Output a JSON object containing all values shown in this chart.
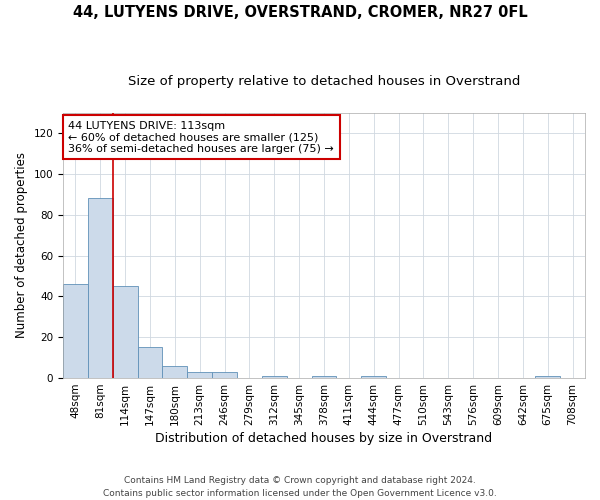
{
  "title1": "44, LUTYENS DRIVE, OVERSTRAND, CROMER, NR27 0FL",
  "title2": "Size of property relative to detached houses in Overstrand",
  "xlabel": "Distribution of detached houses by size in Overstrand",
  "ylabel": "Number of detached properties",
  "bar_values": [
    46,
    88,
    45,
    15,
    6,
    3,
    3,
    0,
    1,
    0,
    1,
    0,
    1,
    0,
    0,
    0,
    0,
    0,
    0,
    1,
    0
  ],
  "categories": [
    "48sqm",
    "81sqm",
    "114sqm",
    "147sqm",
    "180sqm",
    "213sqm",
    "246sqm",
    "279sqm",
    "312sqm",
    "345sqm",
    "378sqm",
    "411sqm",
    "444sqm",
    "477sqm",
    "510sqm",
    "543sqm",
    "576sqm",
    "609sqm",
    "642sqm",
    "675sqm",
    "708sqm"
  ],
  "bar_color": "#ccdaea",
  "bar_edge_color": "#6090b8",
  "grid_color": "#d0d8e0",
  "annotation_text": "44 LUTYENS DRIVE: 113sqm\n← 60% of detached houses are smaller (125)\n36% of semi-detached houses are larger (75) →",
  "annotation_box_color": "#ffffff",
  "annotation_box_edge": "#cc0000",
  "vline_color": "#cc0000",
  "vline_bar_index": 2,
  "ylim": [
    0,
    130
  ],
  "yticks": [
    0,
    20,
    40,
    60,
    80,
    100,
    120
  ],
  "footer1": "Contains HM Land Registry data © Crown copyright and database right 2024.",
  "footer2": "Contains public sector information licensed under the Open Government Licence v3.0.",
  "bg_color": "#ffffff",
  "title1_fontsize": 10.5,
  "title2_fontsize": 9.5,
  "xlabel_fontsize": 9,
  "ylabel_fontsize": 8.5,
  "tick_fontsize": 7.5,
  "annotation_fontsize": 8,
  "footer_fontsize": 6.5
}
